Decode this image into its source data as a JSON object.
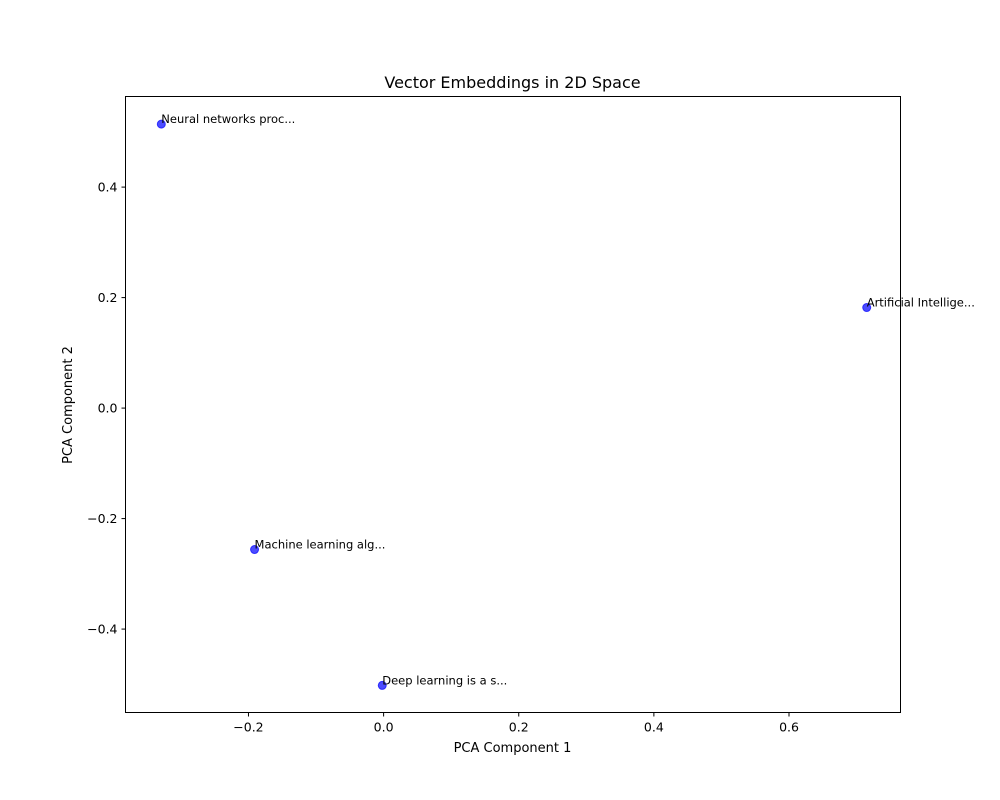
{
  "chart_data": {
    "type": "scatter",
    "title": "Vector Embeddings in 2D Space",
    "xlabel": "PCA Component 1",
    "ylabel": "PCA Component 2",
    "xlim": [
      -0.382,
      0.765
    ],
    "ylim": [
      -0.551,
      0.564
    ],
    "xticks": [
      -0.2,
      0.0,
      0.2,
      0.4,
      0.6
    ],
    "xtick_labels": [
      "−0.2",
      "0.0",
      "0.2",
      "0.4",
      "0.6"
    ],
    "yticks": [
      -0.4,
      -0.2,
      0.0,
      0.2,
      0.4
    ],
    "ytick_labels": [
      "−0.4",
      "−0.2",
      "0.0",
      "0.2",
      "0.4"
    ],
    "grid": false,
    "marker_color": "#0000ff",
    "marker_alpha": 0.7,
    "points": [
      {
        "x": -0.329,
        "y": 0.514,
        "label": "Neural networks proc..."
      },
      {
        "x": 0.715,
        "y": 0.182,
        "label": "Artificial Intellige..."
      },
      {
        "x": -0.191,
        "y": -0.256,
        "label": "Machine learning alg..."
      },
      {
        "x": -0.002,
        "y": -0.502,
        "label": "Deep learning is a s..."
      }
    ]
  }
}
